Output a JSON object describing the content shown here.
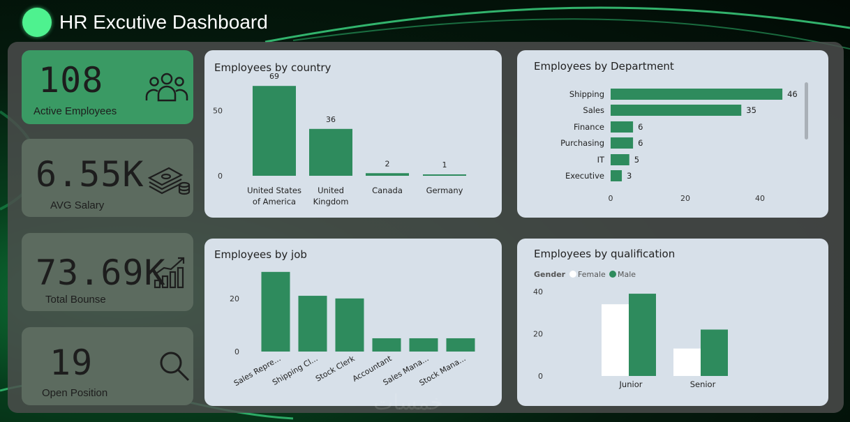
{
  "header": {
    "title": "HR Excutive Dashboard"
  },
  "kpis": {
    "active": {
      "value": "108",
      "label": "Active Employees"
    },
    "salary": {
      "value": "6.55K",
      "label": "AVG Salary"
    },
    "bonus": {
      "value": "73.69K",
      "label": "Total Bounse"
    },
    "open": {
      "value": "19",
      "label": "Open Position"
    }
  },
  "icons": {
    "active": "people-group-icon",
    "salary": "money-stack-icon",
    "bonus": "growth-chart-icon",
    "open": "search-icon"
  },
  "colors": {
    "bar": "#2e8b5d",
    "female": "#ffffff",
    "male": "#2e8b5d",
    "kpi_green": "#3a9a64",
    "kpi_gray": "#5c6b5f"
  },
  "chart_data": [
    {
      "id": "country",
      "type": "bar",
      "title": "Employees by country",
      "categories": [
        "United States of America",
        "United Kingdom",
        "Canada",
        "Germany"
      ],
      "tick_labels": [
        [
          "United States",
          "of America"
        ],
        [
          "United",
          "Kingdom"
        ],
        [
          "Canada"
        ],
        [
          "Germany"
        ]
      ],
      "values": [
        69,
        36,
        2,
        1
      ],
      "yticks": [
        0,
        50
      ],
      "ylim": [
        0,
        75
      ],
      "data_labels": true
    },
    {
      "id": "department",
      "type": "bar",
      "orientation": "horizontal",
      "title": "Employees by Department",
      "categories": [
        "Shipping",
        "Sales",
        "Finance",
        "Purchasing",
        "IT",
        "Executive"
      ],
      "values": [
        46,
        35,
        6,
        6,
        5,
        3
      ],
      "xticks": [
        0,
        20,
        40
      ],
      "xlim": [
        0,
        50
      ],
      "data_labels": true
    },
    {
      "id": "job",
      "type": "bar",
      "title": "Employees by job",
      "categories": [
        "Sales Repre...",
        "Shipping Cl...",
        "Stock Clerk",
        "Accountant",
        "Sales Mana...",
        "Stock Mana..."
      ],
      "values": [
        30,
        21,
        20,
        5,
        5,
        5
      ],
      "yticks": [
        0,
        20
      ],
      "ylim": [
        0,
        31
      ]
    },
    {
      "id": "qualification",
      "type": "bar",
      "title": "Employees by qualification",
      "legend_title": "Gender",
      "categories": [
        "Junior",
        "Senior"
      ],
      "series": [
        {
          "name": "Female",
          "values": [
            34,
            13
          ]
        },
        {
          "name": "Male",
          "values": [
            39,
            22
          ]
        }
      ],
      "yticks": [
        0,
        20,
        40
      ],
      "ylim": [
        0,
        42
      ]
    }
  ],
  "watermark": "خمسات"
}
